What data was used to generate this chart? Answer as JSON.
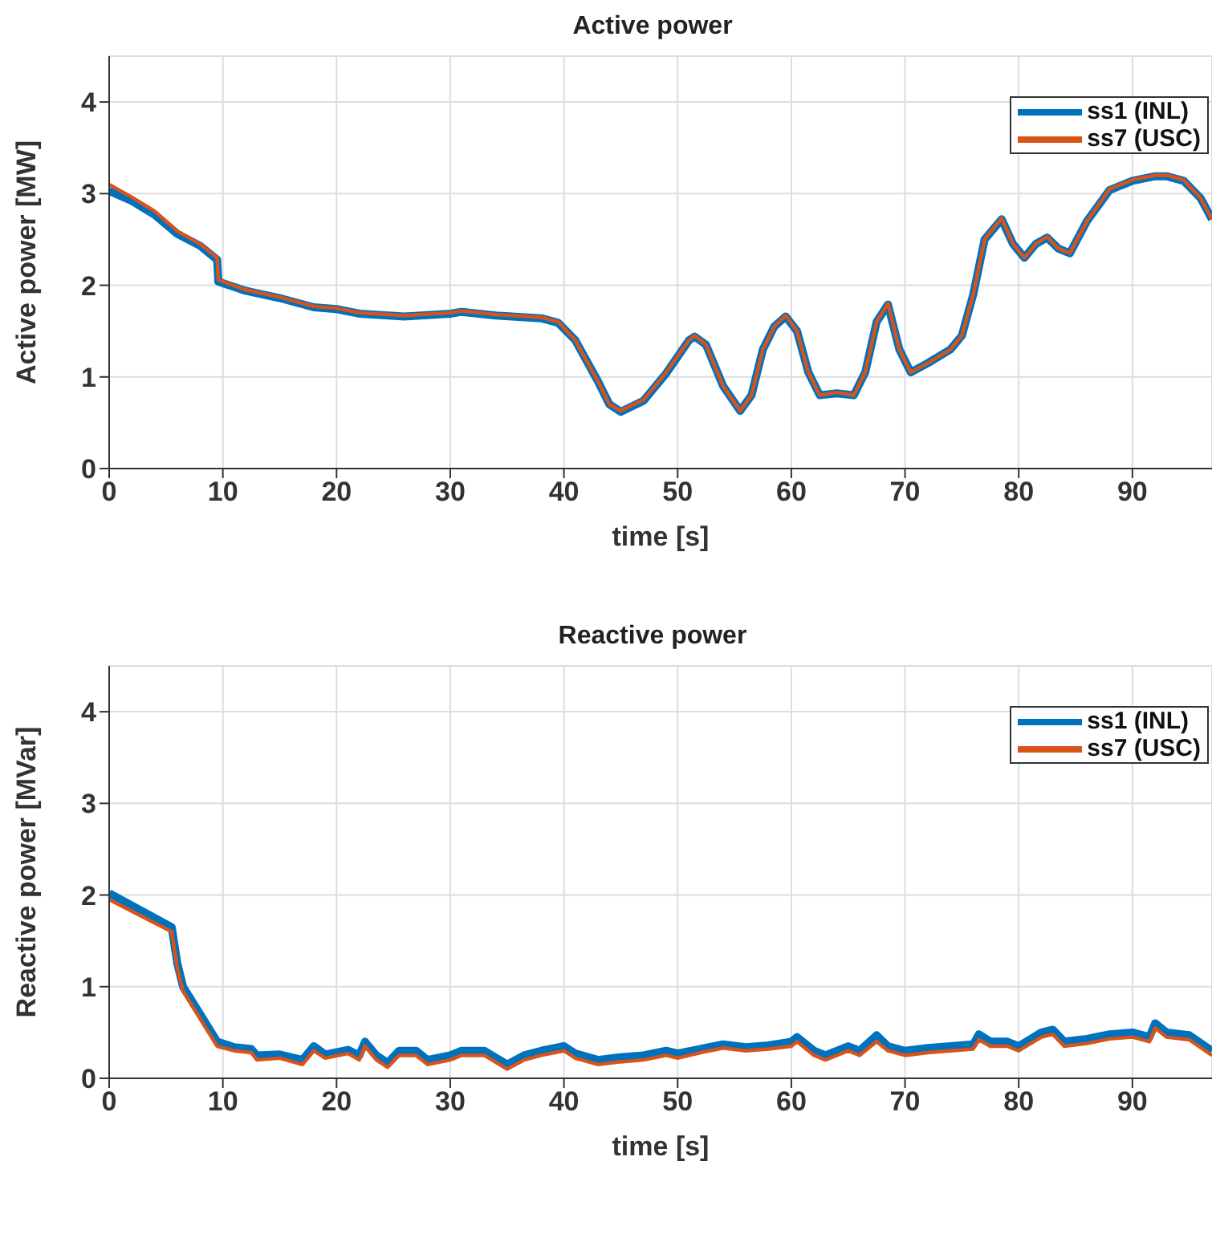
{
  "chart_data": [
    {
      "type": "line",
      "title": "Active power",
      "xlabel": "time [s]",
      "ylabel": "Active power [MW]",
      "xlim": [
        0,
        97
      ],
      "xticks": [
        0,
        10,
        20,
        30,
        40,
        50,
        60,
        70,
        80,
        90
      ],
      "ylim": [
        0,
        4.5
      ],
      "yticks": [
        0,
        1,
        2,
        3,
        4
      ],
      "grid": true,
      "legend": "top right",
      "marker": "none",
      "line_style": "solid",
      "series": [
        {
          "name": "ss1 (INL)",
          "color": "#0072bd",
          "x": [
            0,
            2,
            4,
            6,
            8,
            9.5,
            9.6,
            12,
            15,
            18,
            20,
            22,
            26,
            30,
            31,
            34,
            38,
            39.5,
            41,
            43,
            44,
            45,
            47,
            49,
            51,
            51.5,
            52.5,
            54,
            55.5,
            56.5,
            57.5,
            58.5,
            59.5,
            60.5,
            61.5,
            62.5,
            64,
            65.5,
            66.5,
            67.5,
            68.5,
            69.5,
            70.5,
            72,
            74,
            75,
            76,
            77,
            78.5,
            79.5,
            80.5,
            81.5,
            82.5,
            83.5,
            84.5,
            86,
            88,
            90,
            92,
            93,
            94.5,
            96,
            97
          ],
          "values": [
            3.03,
            2.92,
            2.77,
            2.56,
            2.43,
            2.28,
            2.04,
            1.94,
            1.86,
            1.76,
            1.74,
            1.69,
            1.66,
            1.69,
            1.71,
            1.67,
            1.64,
            1.59,
            1.4,
            0.95,
            0.7,
            0.62,
            0.74,
            1.04,
            1.4,
            1.44,
            1.35,
            0.9,
            0.63,
            0.8,
            1.3,
            1.55,
            1.66,
            1.5,
            1.05,
            0.8,
            0.82,
            0.8,
            1.05,
            1.6,
            1.79,
            1.3,
            1.05,
            1.15,
            1.3,
            1.45,
            1.9,
            2.5,
            2.72,
            2.45,
            2.3,
            2.45,
            2.52,
            2.4,
            2.35,
            2.7,
            3.04,
            3.14,
            3.19,
            3.19,
            3.14,
            2.95,
            2.72
          ]
        },
        {
          "name": "ss7 (USC)",
          "color": "#d95319",
          "x": [
            0,
            2,
            4,
            6,
            8,
            9.5,
            9.6,
            12,
            15,
            18,
            20,
            22,
            26,
            30,
            31,
            34,
            38,
            39.5,
            41,
            43,
            44,
            45,
            47,
            49,
            51,
            51.5,
            52.5,
            54,
            55.5,
            56.5,
            57.5,
            58.5,
            59.5,
            60.5,
            61.5,
            62.5,
            64,
            65.5,
            66.5,
            67.5,
            68.5,
            69.5,
            70.5,
            72,
            74,
            75,
            76,
            77,
            78.5,
            79.5,
            80.5,
            81.5,
            82.5,
            83.5,
            84.5,
            86,
            88,
            90,
            92,
            93,
            94.5,
            96,
            97
          ],
          "values": [
            3.1,
            2.96,
            2.81,
            2.59,
            2.45,
            2.3,
            2.06,
            1.95,
            1.87,
            1.77,
            1.75,
            1.7,
            1.67,
            1.7,
            1.72,
            1.68,
            1.65,
            1.6,
            1.4,
            0.95,
            0.7,
            0.63,
            0.75,
            1.05,
            1.4,
            1.45,
            1.35,
            0.9,
            0.63,
            0.8,
            1.3,
            1.55,
            1.67,
            1.5,
            1.05,
            0.8,
            0.83,
            0.8,
            1.05,
            1.6,
            1.8,
            1.3,
            1.05,
            1.15,
            1.3,
            1.45,
            1.9,
            2.5,
            2.73,
            2.45,
            2.3,
            2.45,
            2.53,
            2.4,
            2.35,
            2.7,
            3.05,
            3.15,
            3.2,
            3.2,
            3.15,
            2.95,
            2.72
          ]
        }
      ]
    },
    {
      "type": "line",
      "title": "Reactive power",
      "xlabel": "time [s]",
      "ylabel": "Reactive power [MVar]",
      "xlim": [
        0,
        97
      ],
      "xticks": [
        0,
        10,
        20,
        30,
        40,
        50,
        60,
        70,
        80,
        90
      ],
      "ylim": [
        0,
        4.5
      ],
      "yticks": [
        0,
        1,
        2,
        3,
        4
      ],
      "grid": true,
      "legend": "top right",
      "marker": "none",
      "line_style": "solid",
      "series": [
        {
          "name": "ss1 (INL)",
          "color": "#0072bd",
          "x": [
            0,
            5.5,
            6,
            6.5,
            7.5,
            8.5,
            9.5,
            11,
            12.5,
            13,
            15,
            17,
            18,
            19,
            21,
            22,
            22.5,
            23.5,
            24.5,
            25.5,
            27,
            28,
            30,
            31,
            33,
            35,
            36.5,
            38,
            40,
            41,
            43,
            45,
            47,
            49,
            50,
            52,
            54,
            56,
            58,
            60,
            60.5,
            62,
            63,
            65,
            66,
            67.5,
            68.5,
            70,
            72,
            74,
            76,
            76.5,
            77.5,
            79,
            80,
            82,
            83,
            84,
            86,
            88,
            90,
            91.5,
            92,
            93,
            95,
            97
          ],
          "values": [
            2.02,
            1.65,
            1.25,
            1,
            0.8,
            0.6,
            0.4,
            0.34,
            0.32,
            0.25,
            0.26,
            0.2,
            0.35,
            0.26,
            0.31,
            0.25,
            0.4,
            0.25,
            0.17,
            0.3,
            0.3,
            0.2,
            0.25,
            0.3,
            0.3,
            0.15,
            0.25,
            0.3,
            0.35,
            0.27,
            0.2,
            0.23,
            0.25,
            0.3,
            0.27,
            0.32,
            0.37,
            0.34,
            0.36,
            0.4,
            0.45,
            0.3,
            0.25,
            0.35,
            0.3,
            0.47,
            0.35,
            0.3,
            0.33,
            0.35,
            0.37,
            0.48,
            0.4,
            0.4,
            0.35,
            0.5,
            0.53,
            0.4,
            0.43,
            0.48,
            0.5,
            0.45,
            0.6,
            0.5,
            0.47,
            0.3
          ]
        },
        {
          "name": "ss7 (USC)",
          "color": "#d95319",
          "x": [
            0,
            5.5,
            6,
            6.5,
            7.5,
            8.5,
            9.5,
            11,
            12.5,
            13,
            15,
            17,
            18,
            19,
            21,
            22,
            22.5,
            23.5,
            24.5,
            25.5,
            27,
            28,
            30,
            31,
            33,
            35,
            36.5,
            38,
            40,
            41,
            43,
            45,
            47,
            49,
            50,
            52,
            54,
            56,
            58,
            60,
            60.5,
            62,
            63,
            65,
            66,
            67.5,
            68.5,
            70,
            72,
            74,
            76,
            76.5,
            77.5,
            79,
            80,
            82,
            83,
            84,
            86,
            88,
            90,
            91.5,
            92,
            93,
            95,
            97
          ],
          "values": [
            1.95,
            1.6,
            1.2,
            0.95,
            0.75,
            0.55,
            0.35,
            0.3,
            0.28,
            0.2,
            0.22,
            0.15,
            0.3,
            0.22,
            0.27,
            0.2,
            0.35,
            0.2,
            0.12,
            0.25,
            0.25,
            0.15,
            0.2,
            0.25,
            0.25,
            0.1,
            0.2,
            0.25,
            0.3,
            0.22,
            0.15,
            0.18,
            0.2,
            0.25,
            0.22,
            0.28,
            0.33,
            0.3,
            0.32,
            0.35,
            0.4,
            0.25,
            0.2,
            0.3,
            0.25,
            0.4,
            0.3,
            0.25,
            0.28,
            0.3,
            0.32,
            0.42,
            0.35,
            0.35,
            0.3,
            0.45,
            0.48,
            0.35,
            0.38,
            0.43,
            0.45,
            0.4,
            0.55,
            0.45,
            0.42,
            0.25
          ]
        }
      ]
    }
  ]
}
